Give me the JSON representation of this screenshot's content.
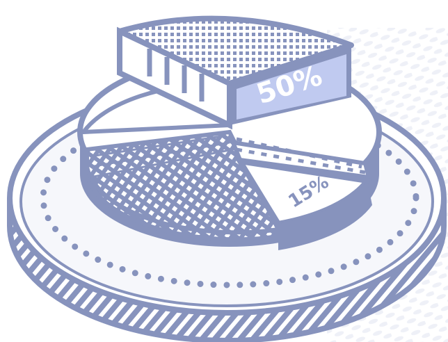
{
  "slices": [
    {
      "label": "50%"
    },
    {
      "label": "15%"
    }
  ]
}
